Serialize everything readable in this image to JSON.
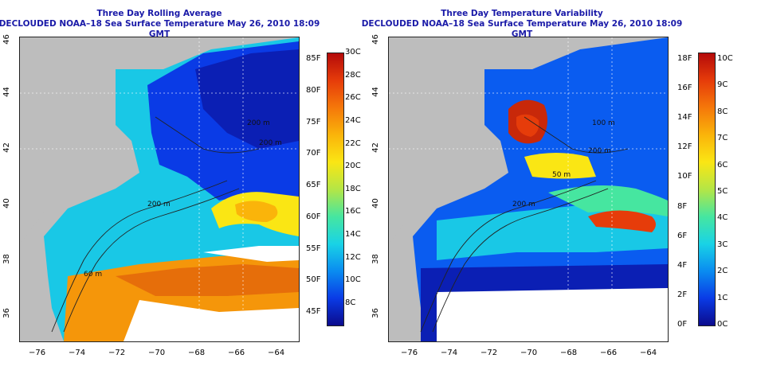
{
  "left": {
    "title_line1": "Three Day Rolling Average",
    "title_line2": "DECLOUDED NOAA–18 Sea Surface Temperature May 26, 2010 18:09 GMT",
    "contour_labels": [
      "200 m",
      "60 m",
      "200 m",
      "200 m"
    ],
    "colorbar_f": [
      "85F",
      "80F",
      "75F",
      "70F",
      "65F",
      "60F",
      "55F",
      "50F",
      "45F"
    ],
    "colorbar_c": [
      "30C",
      "28C",
      "26C",
      "24C",
      "22C",
      "20C",
      "18C",
      "16C",
      "14C",
      "12C",
      "10C",
      "8C"
    ],
    "colors": [
      "#0b0b8c",
      "#0a3be6",
      "#0a8cf0",
      "#19d3e6",
      "#46e6a0",
      "#b4e646",
      "#fae614",
      "#fab40a",
      "#f5780a",
      "#e63c0a",
      "#b40a0a"
    ]
  },
  "right": {
    "title_line1": "Three Day Temperature Variability",
    "title_line2": "DECLOUDED NOAA–18 Sea Surface Temperature May 26, 2010 18:09 GMT",
    "contour_labels": [
      "100 m",
      "200 m",
      "50 m",
      "200 m"
    ],
    "colorbar_f": [
      "18F",
      "16F",
      "14F",
      "12F",
      "10F",
      "8F",
      "6F",
      "4F",
      "2F",
      "0F"
    ],
    "colorbar_c": [
      "10C",
      "9C",
      "8C",
      "7C",
      "6C",
      "5C",
      "4C",
      "3C",
      "2C",
      "1C",
      "0C"
    ],
    "colors": [
      "#0b0b8c",
      "#0a3be6",
      "#0a8cf0",
      "#19d3e6",
      "#46e6a0",
      "#b4e646",
      "#fae614",
      "#fab40a",
      "#f5780a",
      "#e63c0a",
      "#b40a0a"
    ]
  },
  "axes": {
    "x_ticks": [
      "−76",
      "−74",
      "−72",
      "−70",
      "−68",
      "−66",
      "−64"
    ],
    "y_ticks": [
      "46",
      "44",
      "42",
      "40",
      "38",
      "36"
    ]
  }
}
